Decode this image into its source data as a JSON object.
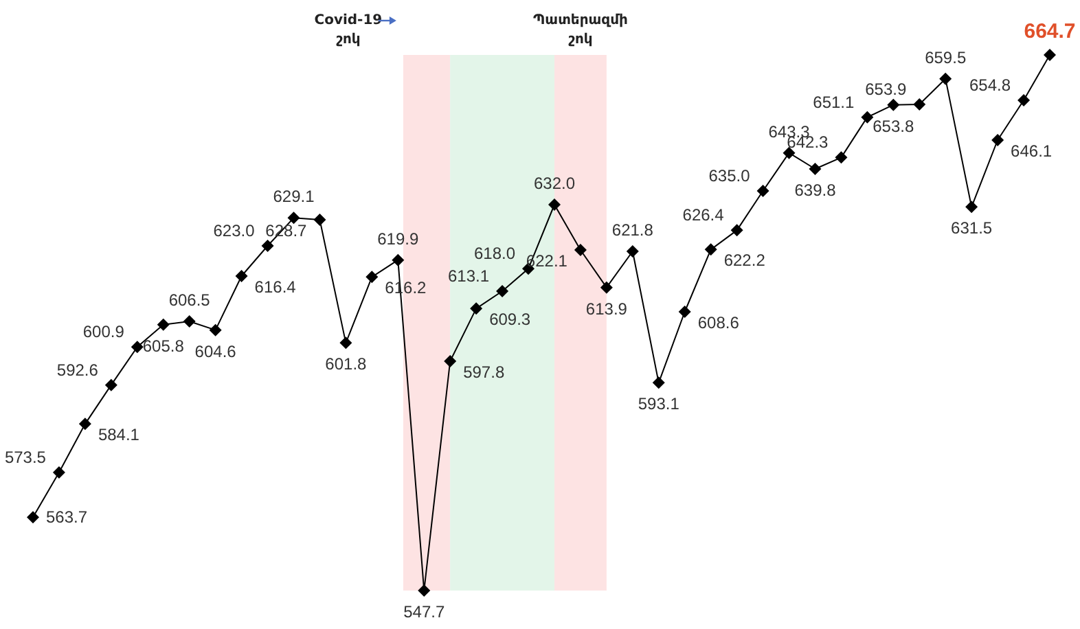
{
  "chart_data": {
    "type": "line",
    "categories": [
      null,
      null,
      null,
      null,
      null,
      null,
      null,
      null,
      null,
      null,
      null,
      null,
      null,
      null,
      null,
      null,
      null,
      null,
      null,
      null,
      null,
      null,
      null,
      null,
      null,
      null,
      null,
      null,
      null,
      null,
      null,
      null,
      null,
      null,
      null,
      null,
      null,
      null,
      null,
      null
    ],
    "series": [
      {
        "color": "#000000",
        "values": [
          563.7,
          573.5,
          584.1,
          592.6,
          600.9,
          605.8,
          606.5,
          604.6,
          616.4,
          623.0,
          629.1,
          628.7,
          601.8,
          616.2,
          619.9,
          547.7,
          597.8,
          609.3,
          613.1,
          618.0,
          632.0,
          622.1,
          613.9,
          621.8,
          593.1,
          608.6,
          622.2,
          626.4,
          635.0,
          643.3,
          639.8,
          642.3,
          651.1,
          653.8,
          653.9,
          659.5,
          631.5,
          646.1,
          654.8,
          664.7
        ],
        "value_labels": [
          "563.7",
          "573.5",
          "584.1",
          "592.6",
          "600.9",
          "605.8",
          "606.5",
          "604.6",
          "616.4",
          "623.0",
          "629.1",
          "628.7",
          "601.8",
          "616.2",
          "619.9",
          "547.7",
          "597.8",
          "609.3",
          "613.1",
          "618.0",
          "632.0",
          "622.1",
          "613.9",
          "621.8",
          "593.1",
          "608.6",
          "622.2",
          "626.4",
          "635.0",
          "643.3",
          "639.8",
          "642.3",
          "651.1",
          "653.8",
          "653.9",
          "659.5",
          "631.5",
          "646.1",
          "654.8",
          "664.7"
        ]
      }
    ],
    "marker": "diamond",
    "grid": false,
    "annotations": [
      "Covid-19\nշոկ",
      "Պատերազմի\nշոկ"
    ]
  }
}
